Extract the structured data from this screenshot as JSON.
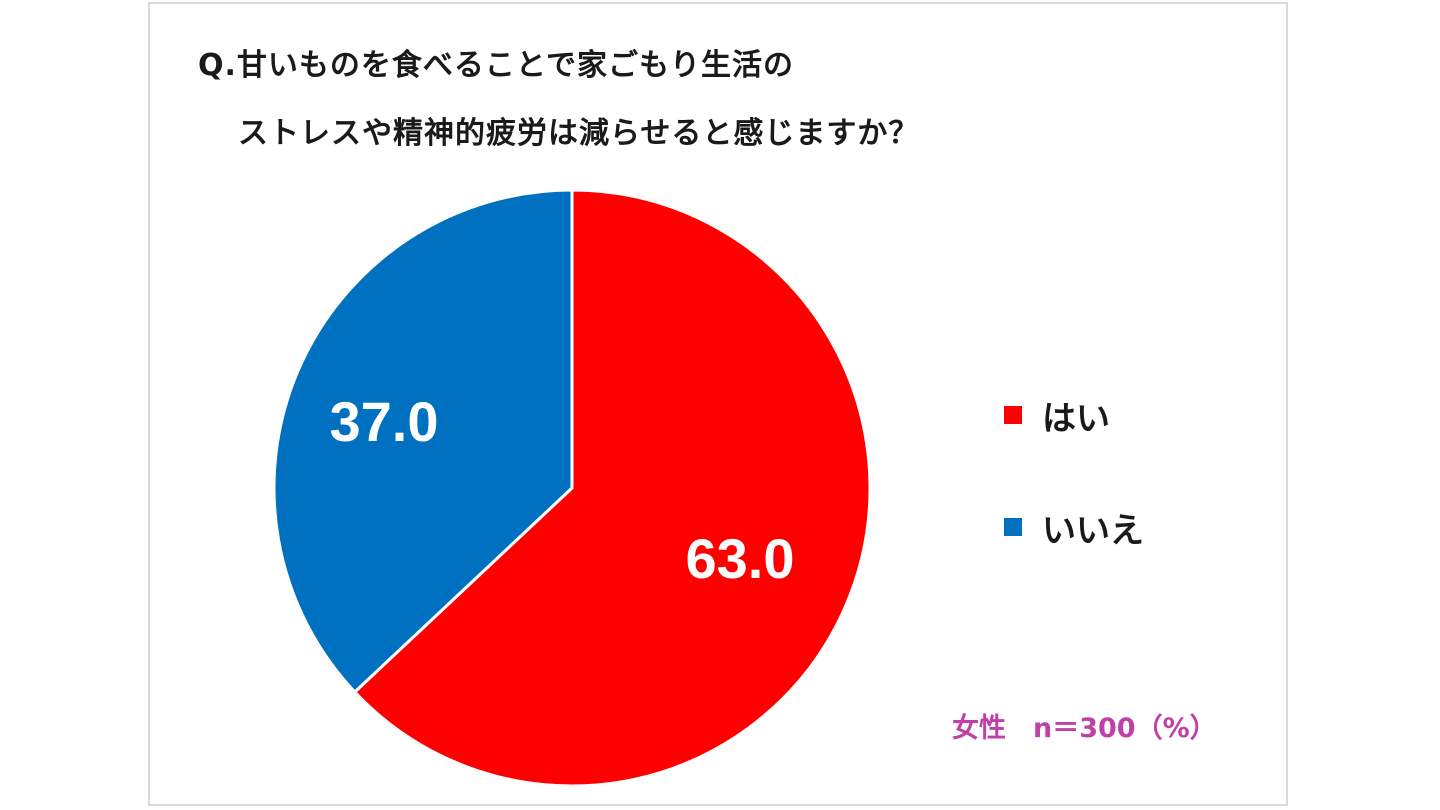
{
  "title": {
    "line1": "Q.甘いものを食べることで家ごもり生活の",
    "line2": "ストレスや精神的疲労は減らせると感じますか？"
  },
  "footnote": "女性　n＝300（%）",
  "colors": {
    "yes": "#ff0000",
    "no": "#0070c0",
    "label": "#ffffff",
    "footnote": "#c040a8",
    "border": "#d9d9d9"
  },
  "chart_data": {
    "type": "pie",
    "categories": [
      "はい",
      "いいえ"
    ],
    "values": [
      63.0,
      37.0
    ],
    "data_labels": [
      "63.0",
      "37.0"
    ],
    "start_angle_deg": 0,
    "direction": "clockwise",
    "legend_position": "right",
    "unit": "%"
  }
}
